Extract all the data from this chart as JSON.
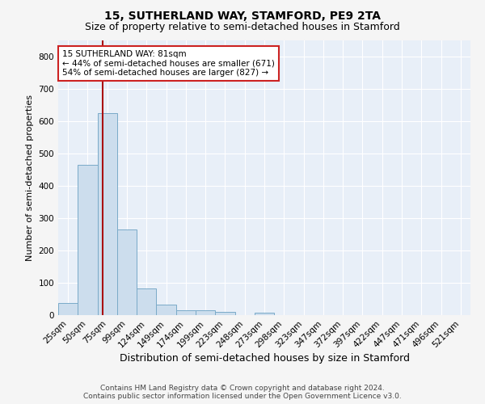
{
  "title": "15, SUTHERLAND WAY, STAMFORD, PE9 2TA",
  "subtitle": "Size of property relative to semi-detached houses in Stamford",
  "xlabel": "Distribution of semi-detached houses by size in Stamford",
  "ylabel": "Number of semi-detached properties",
  "categories": [
    "25sqm",
    "50sqm",
    "75sqm",
    "99sqm",
    "124sqm",
    "149sqm",
    "174sqm",
    "199sqm",
    "223sqm",
    "248sqm",
    "273sqm",
    "298sqm",
    "323sqm",
    "347sqm",
    "372sqm",
    "397sqm",
    "422sqm",
    "447sqm",
    "471sqm",
    "496sqm",
    "521sqm"
  ],
  "values": [
    37,
    465,
    625,
    265,
    82,
    33,
    15,
    14,
    11,
    0,
    8,
    0,
    0,
    0,
    0,
    0,
    0,
    0,
    0,
    0,
    0
  ],
  "bar_color": "#ccdded",
  "bar_edge_color": "#7aaac8",
  "vline_color": "#aa1111",
  "annotation_text": "15 SUTHERLAND WAY: 81sqm\n← 44% of semi-detached houses are smaller (671)\n54% of semi-detached houses are larger (827) →",
  "annotation_box_color": "#ffffff",
  "annotation_box_edge": "#cc2222",
  "ylim": [
    0,
    850
  ],
  "yticks": [
    0,
    100,
    200,
    300,
    400,
    500,
    600,
    700,
    800
  ],
  "plot_bg_color": "#e8eff8",
  "fig_bg_color": "#f5f5f5",
  "grid_color": "#ffffff",
  "footer": "Contains HM Land Registry data © Crown copyright and database right 2024.\nContains public sector information licensed under the Open Government Licence v3.0.",
  "title_fontsize": 10,
  "subtitle_fontsize": 9,
  "xlabel_fontsize": 9,
  "ylabel_fontsize": 8,
  "tick_fontsize": 7.5,
  "footer_fontsize": 6.5,
  "annot_fontsize": 7.5
}
